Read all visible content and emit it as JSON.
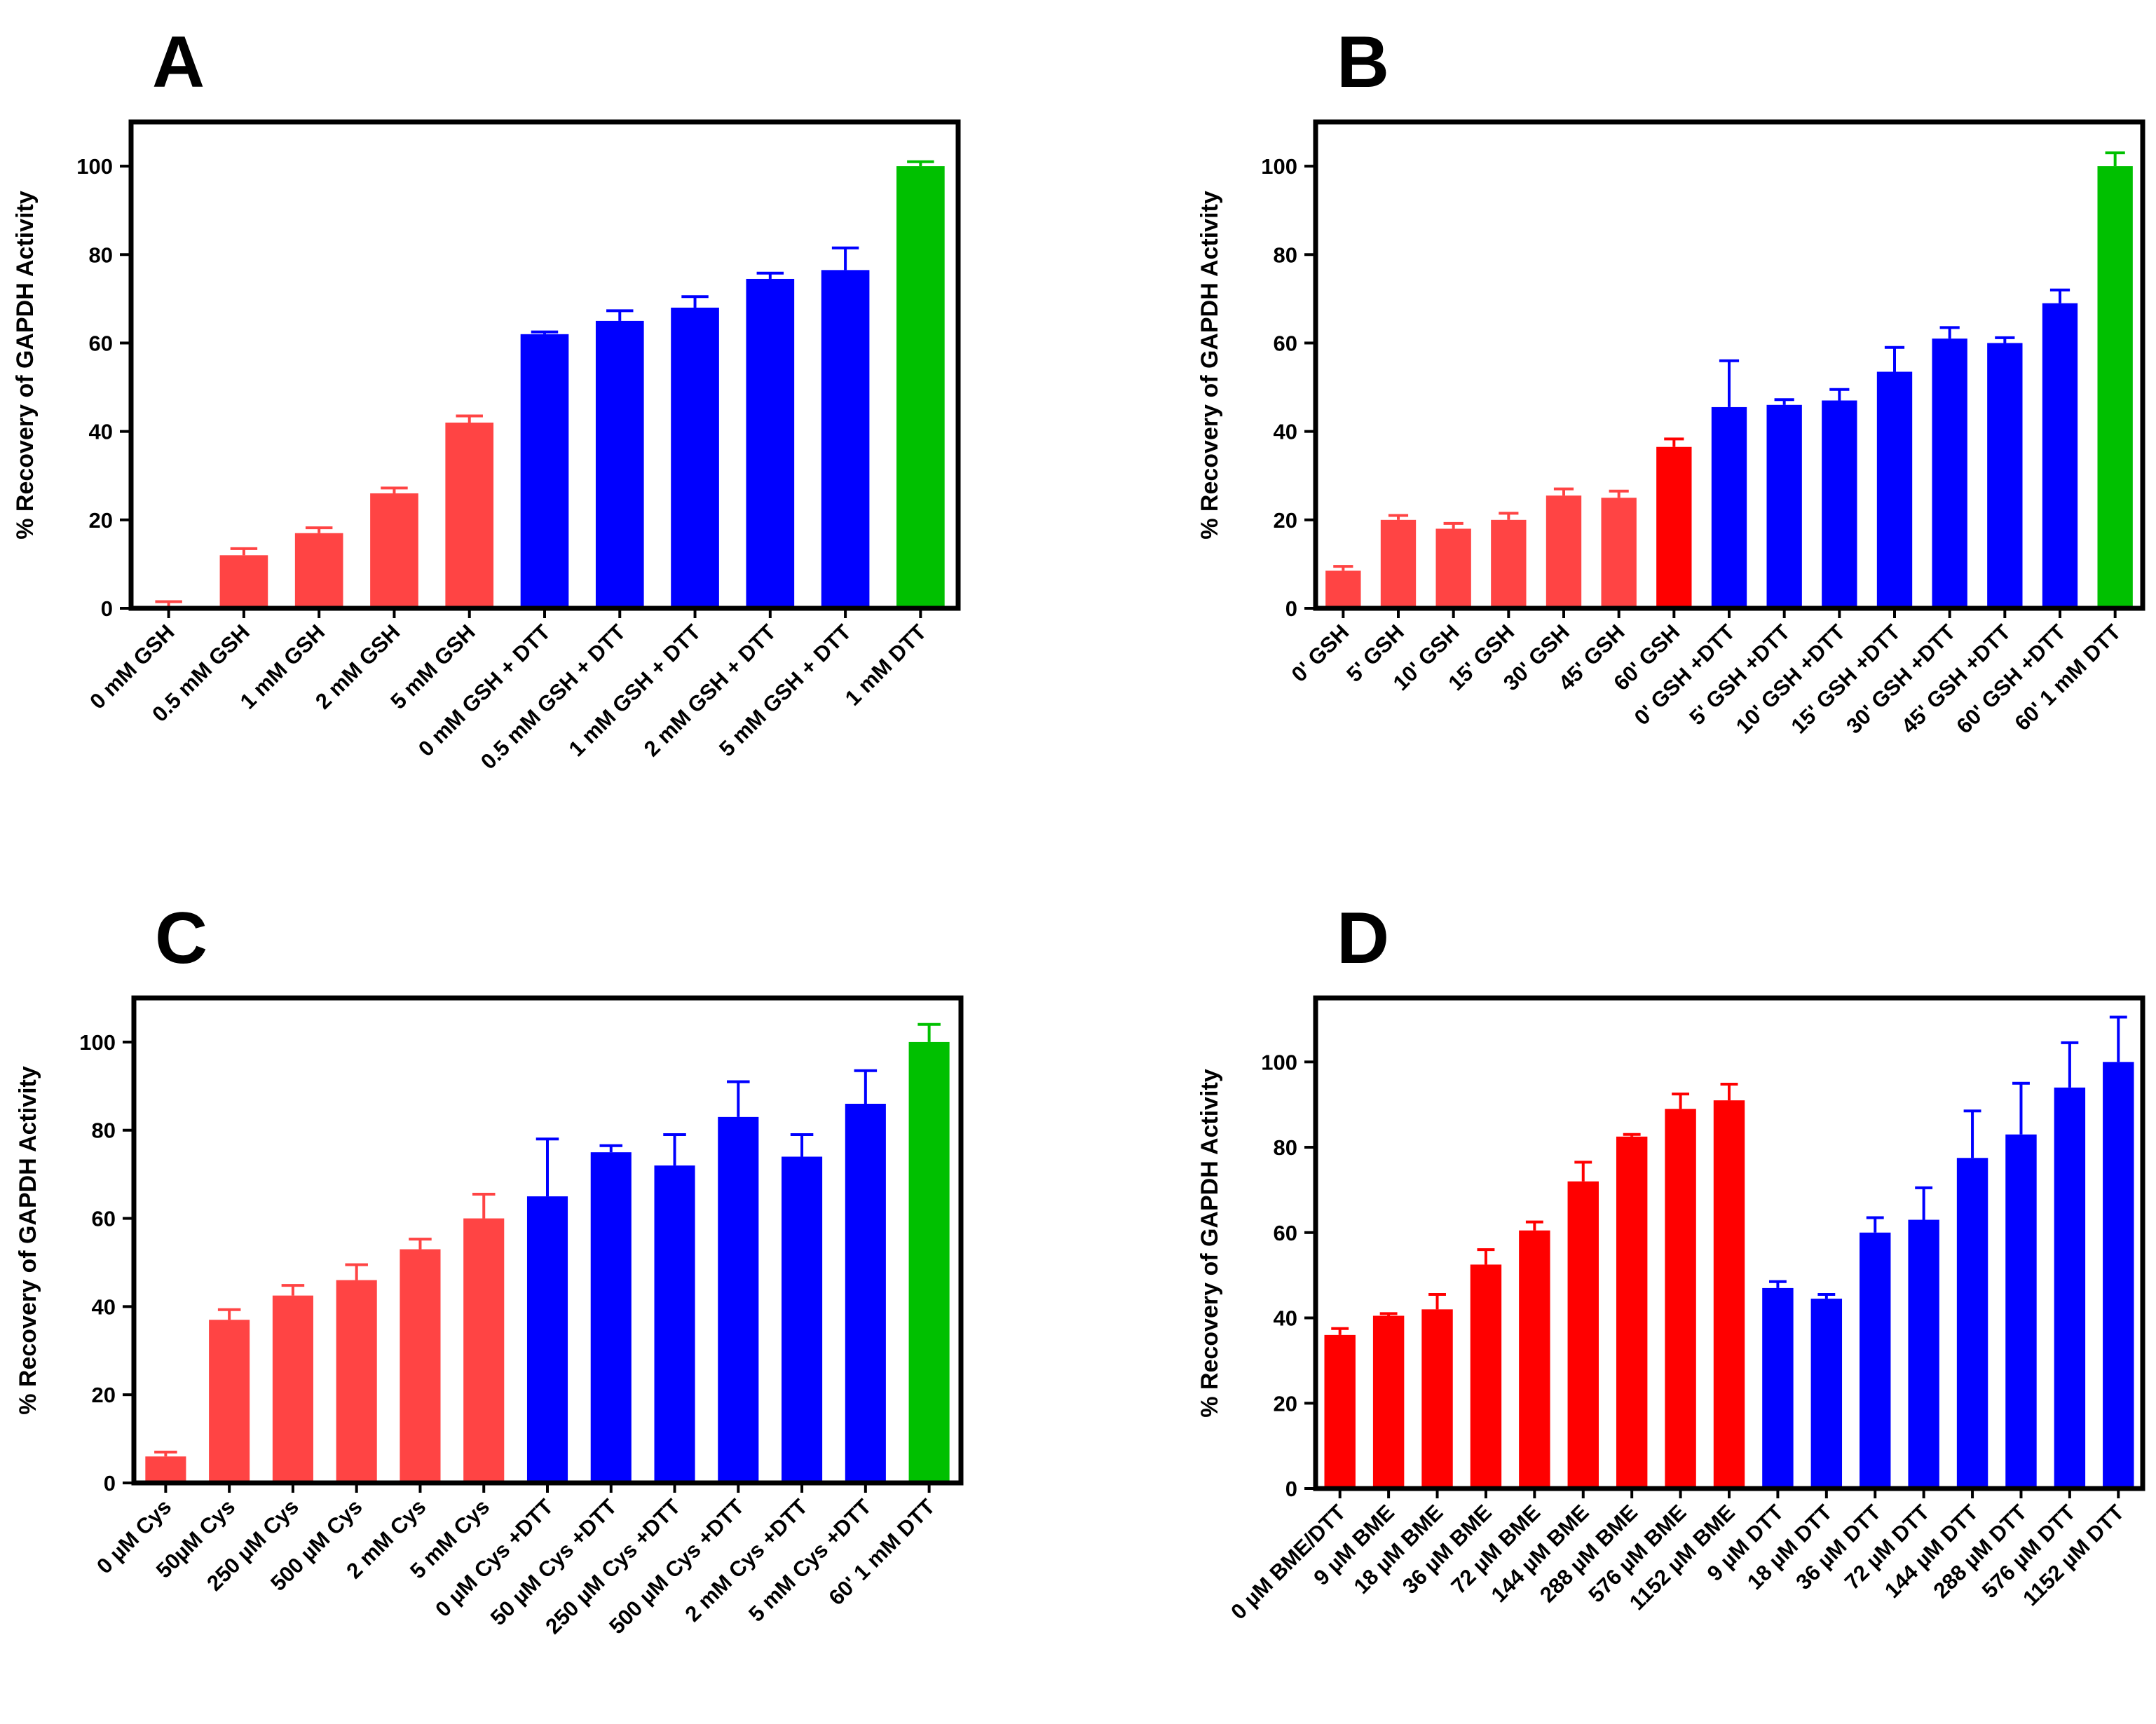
{
  "chart_data": [
    {
      "type": "bar",
      "panel": "A",
      "y_label": "% Recovery of GAPDH Activity",
      "categories": [
        "0 mM GSH",
        "0.5 mM GSH",
        "1 mM GSH",
        "2 mM GSH",
        "5 mM GSH",
        "0 mM GSH + DTT",
        "0.5 mM GSH + DTT",
        "1 mM GSH + DTT",
        "2 mM GSH + DTT",
        "5 mM GSH + DTT",
        "1 mM DTT"
      ],
      "values": [
        0.5,
        12,
        17,
        26,
        42,
        62,
        65,
        68,
        74.5,
        76.5,
        100
      ],
      "errors": [
        1,
        1.5,
        1.2,
        1.2,
        1.5,
        0.5,
        2.3,
        2.5,
        1.3,
        5,
        1
      ],
      "colors": [
        "#ff4444",
        "#ff4444",
        "#ff4444",
        "#ff4444",
        "#ff4444",
        "#0000ff",
        "#0000ff",
        "#0000ff",
        "#0000ff",
        "#0000ff",
        "#00c000"
      ],
      "ylim": [
        0,
        110
      ],
      "yticks": [
        0,
        20,
        40,
        60,
        80,
        100
      ]
    },
    {
      "type": "bar",
      "panel": "B",
      "y_label": "% Recovery of GAPDH Activity",
      "categories": [
        "0' GSH",
        "5' GSH",
        "10' GSH",
        "15' GSH",
        "30' GSH",
        "45' GSH",
        "60' GSH",
        "0' GSH +DTT",
        "5' GSH +DTT",
        "10' GSH +DTT",
        "15' GSH +DTT",
        "30' GSH +DTT",
        "45' GSH +DTT",
        "60' GSH +DTT",
        "60' 1 mM DTT"
      ],
      "values": [
        8.5,
        20,
        18,
        20,
        25.5,
        25,
        36.5,
        45.5,
        46,
        47,
        53.5,
        61,
        60,
        69,
        100
      ],
      "errors": [
        1,
        1,
        1.2,
        1.5,
        1.5,
        1.5,
        1.8,
        10.5,
        1.2,
        2.5,
        5.5,
        2.5,
        1.2,
        3,
        3
      ],
      "colors": [
        "#ff4444",
        "#ff4444",
        "#ff4444",
        "#ff4444",
        "#ff4444",
        "#ff4444",
        "#ff0000",
        "#0000ff",
        "#0000ff",
        "#0000ff",
        "#0000ff",
        "#0000ff",
        "#0000ff",
        "#0000ff",
        "#00c000"
      ],
      "ylim": [
        0,
        110
      ],
      "yticks": [
        0,
        20,
        40,
        60,
        80,
        100
      ]
    },
    {
      "type": "bar",
      "panel": "C",
      "y_label": "% Recovery of GAPDH Activity",
      "categories": [
        "0 µM Cys",
        "50µM Cys",
        "250 µM Cys",
        "500 µM Cys",
        "2 mM Cys",
        "5 mM Cys",
        "0 µM Cys +DTT",
        "50 µM Cys +DTT",
        "250 µM Cys +DTT",
        "500 µM Cys +DTT",
        "2 mM Cys +DTT",
        "5 mM Cys +DTT",
        "60' 1 mM DTT"
      ],
      "values": [
        6,
        37,
        42.5,
        46,
        53,
        60,
        65,
        75,
        72,
        83,
        74,
        86,
        100
      ],
      "errors": [
        1,
        2.3,
        2.3,
        3.5,
        2.3,
        5.5,
        13,
        1.5,
        7,
        8,
        5,
        7.5,
        4
      ],
      "colors": [
        "#ff4444",
        "#ff4444",
        "#ff4444",
        "#ff4444",
        "#ff4444",
        "#ff4444",
        "#0000ff",
        "#0000ff",
        "#0000ff",
        "#0000ff",
        "#0000ff",
        "#0000ff",
        "#00c000"
      ],
      "ylim": [
        0,
        110
      ],
      "yticks": [
        0,
        20,
        40,
        60,
        80,
        100
      ]
    },
    {
      "type": "bar",
      "panel": "D",
      "y_label": "% Recovery of GAPDH Activity",
      "categories": [
        "0 µM BME/DTT",
        "9 µM BME",
        "18 µM BME",
        "36 µM BME",
        "72 µM BME",
        "144 µM BME",
        "288 µM BME",
        "576 µM BME",
        "1152 µM BME",
        "9 µM DTT",
        "18 µM DTT",
        "36 µM DTT",
        "72 µM DTT",
        "144 µM DTT",
        "288 µM DTT",
        "576 µM DTT",
        "1152 µM DTT"
      ],
      "values": [
        36,
        40.5,
        42,
        52.5,
        60.5,
        72,
        82.5,
        89,
        91,
        47,
        44.5,
        60,
        63,
        77.5,
        83,
        94,
        100
      ],
      "errors": [
        1.5,
        0.5,
        3.5,
        3.5,
        2,
        4.5,
        0.5,
        3.5,
        3.8,
        1.5,
        1,
        3.5,
        7.5,
        11,
        12,
        10.5,
        10.5
      ],
      "colors": [
        "#ff0000",
        "#ff0000",
        "#ff0000",
        "#ff0000",
        "#ff0000",
        "#ff0000",
        "#ff0000",
        "#ff0000",
        "#ff0000",
        "#0000ff",
        "#0000ff",
        "#0000ff",
        "#0000ff",
        "#0000ff",
        "#0000ff",
        "#0000ff",
        "#0000ff"
      ],
      "ylim": [
        0,
        115
      ],
      "yticks": [
        0,
        20,
        40,
        60,
        80,
        100
      ]
    }
  ]
}
